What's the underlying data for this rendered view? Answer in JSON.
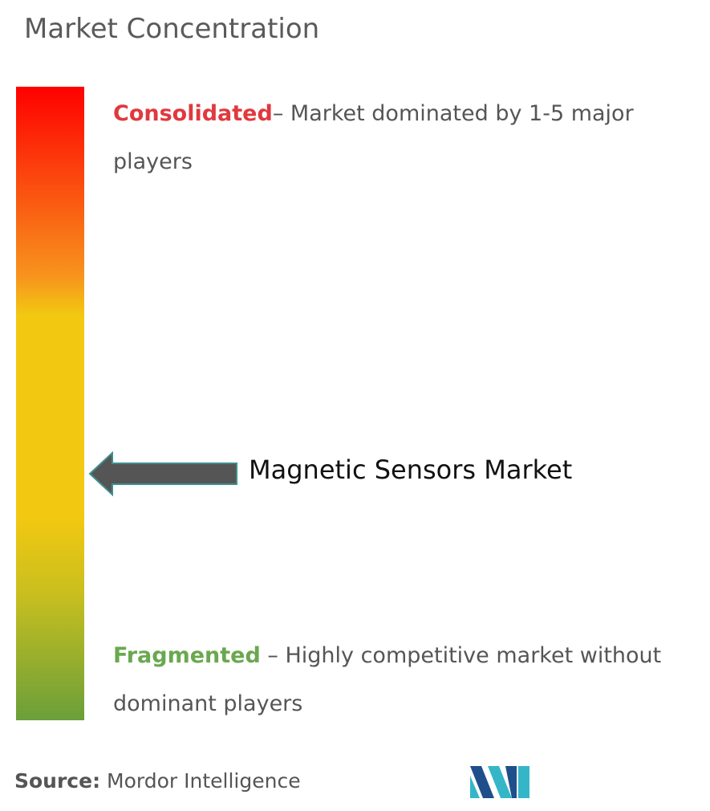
{
  "title": "Market Concentration",
  "scale": {
    "top": {
      "label": "Consolidated",
      "description": "– Market dominated by 1-5 major players"
    },
    "bottom": {
      "label": "Fragmented",
      "description": "– Highly competitive market without dominant players"
    }
  },
  "marker": {
    "label": "Magnetic Sensors Market"
  },
  "source": {
    "label": "Source:",
    "text": "Mordor Intelligence"
  }
}
